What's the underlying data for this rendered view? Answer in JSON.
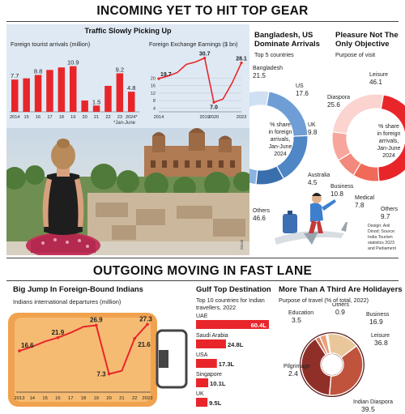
{
  "colors": {
    "red": "#e8262a",
    "blue": "#4f86c6",
    "panel": "#dfe9f4",
    "suitcase": "#f0a24e",
    "donut": "#7a2f2a"
  },
  "top": {
    "title": "INCOMING YET TO HIT TOP GEAR",
    "credit": "iStock"
  },
  "bottom": {
    "title": "OUTGOING MOVING IN FAST LANE"
  },
  "chart_data": [
    {
      "type": "bar",
      "title": "Traffic Slowly Picking Up",
      "ylabel": "Foreign tourist arrivals (million)",
      "categories": [
        "2014",
        "15",
        "16",
        "17",
        "18",
        "19",
        "20",
        "21",
        "22",
        "23",
        "2024*"
      ],
      "values": [
        7.7,
        8.0,
        8.8,
        10.0,
        10.6,
        10.9,
        2.7,
        1.5,
        6.2,
        9.2,
        4.8
      ],
      "labels": [
        "7.7",
        "",
        "8.8",
        "",
        "",
        "10.9",
        "",
        "1.5",
        "",
        "9.2",
        "4.8"
      ],
      "ylim": [
        0,
        12
      ],
      "note": "*Jan-June"
    },
    {
      "type": "line",
      "title": "Foreign Exchange Earnings ($ bn)",
      "x": [
        2014,
        2015,
        2016,
        2017,
        2018,
        2019,
        2020,
        2021,
        2022,
        2023
      ],
      "y": [
        19.7,
        21.1,
        22.9,
        27.3,
        28.6,
        30.7,
        7.0,
        8.8,
        17.5,
        28.1
      ],
      "labels": {
        "2014": "19.7",
        "2019": "30.7",
        "2020": "7.0",
        "2023": "28.1"
      },
      "yticks": [
        4,
        8,
        12,
        16,
        20
      ],
      "xticks": [
        "2014",
        "2019",
        "2020",
        "2023"
      ],
      "ylim": [
        2,
        34
      ]
    },
    {
      "type": "pie",
      "title": "Bangladesh, US Dominate Arrivals",
      "subtitle": "Top 5 countries",
      "center_text": [
        "% share",
        "in foreign",
        "arrivals,",
        "Jan-June",
        "2024"
      ],
      "slices": [
        {
          "name": "Bangladesh",
          "value": 21.5,
          "label": "21.5"
        },
        {
          "name": "US",
          "value": 17.6,
          "label": "17.6"
        },
        {
          "name": "UK",
          "value": 9.8,
          "label": "9.8"
        },
        {
          "name": "Australia",
          "value": 4.5,
          "label": "4.5"
        },
        {
          "name": "Others",
          "value": 46.6,
          "label": "46.6"
        }
      ]
    },
    {
      "type": "pie",
      "title": "Pleasure Not The Only Objective",
      "subtitle": "Purpose of visit",
      "center_text": [
        "% share",
        "in foreign",
        "arrivals,",
        "Jan-June",
        "2024"
      ],
      "slices": [
        {
          "name": "Leisure",
          "value": 46.1,
          "label": "46.1"
        },
        {
          "name": "Others",
          "value": 9.7,
          "label": "9.7"
        },
        {
          "name": "Medical",
          "value": 7.8,
          "label": "7.8"
        },
        {
          "name": "Business",
          "value": 10.8,
          "label": "10.8"
        },
        {
          "name": "Diaspora",
          "value": 25.6,
          "label": "25.6"
        }
      ],
      "source": [
        "Design: Anil",
        "Dinod; Source:",
        "India Tourism",
        "statistics 2023",
        "and Parliament"
      ]
    },
    {
      "type": "line",
      "title": "Big Jump In Foreign-Bound Indians",
      "ylabel": "Indians international departures (million)",
      "x": [
        2013,
        2014,
        2015,
        2016,
        2017,
        2018,
        2019,
        2020,
        2021,
        2022,
        2023
      ],
      "y": [
        16.6,
        18.3,
        20.4,
        21.9,
        23.9,
        26.3,
        26.9,
        7.3,
        8.6,
        21.6,
        27.3
      ],
      "labels": {
        "2013": "16.6",
        "2016": "21.9",
        "2019": "26.9",
        "2020": "7.3",
        "2022": "21.6",
        "2023": "27.3"
      },
      "xticks": [
        "2013",
        "14",
        "15",
        "16",
        "17",
        "18",
        "19",
        "20",
        "21",
        "22",
        "2023"
      ],
      "ylim": [
        0,
        30
      ]
    },
    {
      "type": "bar",
      "title": "Gulf Top Destination",
      "subtitle": "Top 10 countries for Indian travellers, 2022",
      "categories": [
        "UAE",
        "Saudi Arabia",
        "USA",
        "Singapore",
        "UK"
      ],
      "values": [
        60.4,
        24.8,
        17.3,
        10.1,
        9.5
      ],
      "labels": [
        "60.4L",
        "24.8L",
        "17.3L",
        "10.1L",
        "9.5L"
      ],
      "orientation": "horizontal"
    },
    {
      "type": "pie",
      "title": "More Than A Third Are Holidayers",
      "subtitle": "Purpose of travel (% of total, 2022)",
      "slices": [
        {
          "name": "Others",
          "value": 0.9,
          "label": "0.9"
        },
        {
          "name": "Business",
          "value": 16.9,
          "label": "16.9"
        },
        {
          "name": "Leisure",
          "value": 36.8,
          "label": "36.8"
        },
        {
          "name": "Indian Diaspora",
          "value": 39.5,
          "label": "39.5"
        },
        {
          "name": "Pilgrimage",
          "value": 2.4,
          "label": "2.4"
        },
        {
          "name": "Education",
          "value": 3.5,
          "label": "3.5"
        }
      ]
    }
  ]
}
